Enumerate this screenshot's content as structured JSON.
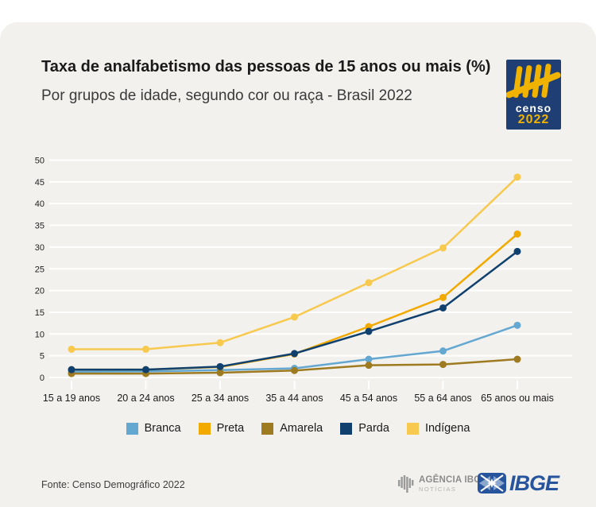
{
  "header": {
    "title": "Taxa de analfabetismo das pessoas de 15 anos ou mais (%)",
    "subtitle": "Por grupos de idade, segundo cor ou raça - Brasil 2022"
  },
  "censo_logo": {
    "word": "censo",
    "year": "2022",
    "bg_color": "#1e3e74",
    "yellow_color": "#f0b400"
  },
  "chart_data": {
    "type": "line",
    "title": "Taxa de analfabetismo das pessoas de 15 anos ou mais (%)",
    "subtitle": "Por grupos de idade, segundo cor ou raça - Brasil 2022",
    "xlabel": "",
    "ylabel": "",
    "ylim": [
      0,
      50
    ],
    "ytick_step": 5,
    "grid": true,
    "legend_position": "bottom",
    "categories": [
      "15 a 19 anos",
      "20 a 24 anos",
      "25 a 34 anos",
      "35 a 44 anos",
      "45 a 54 anos",
      "55 a 64 anos",
      "65 anos ou mais"
    ],
    "series": [
      {
        "name": "Branca",
        "color": "#64a8d2",
        "values": [
          1.3,
          1.4,
          1.7,
          2.1,
          4.2,
          6.1,
          12.0
        ]
      },
      {
        "name": "Preta",
        "color": "#f2a900",
        "values": [
          1.8,
          1.8,
          2.4,
          5.4,
          11.7,
          18.4,
          33.0
        ]
      },
      {
        "name": "Amarela",
        "color": "#9e7b20",
        "values": [
          0.9,
          0.9,
          1.1,
          1.6,
          2.8,
          3.0,
          4.2
        ]
      },
      {
        "name": "Parda",
        "color": "#10406e",
        "values": [
          1.8,
          1.8,
          2.5,
          5.5,
          10.6,
          16.0,
          29.0
        ]
      },
      {
        "name": "Indígena",
        "color": "#f7c94e",
        "values": [
          6.5,
          6.5,
          8.0,
          13.9,
          21.8,
          29.8,
          46.1
        ]
      }
    ]
  },
  "footer": {
    "source": "Fonte: Censo Demográfico 2022",
    "agencia_line1": "AGÊNCIA IBGE",
    "agencia_line2": "NOTÍCIAS",
    "ibge_label": "IBGE"
  },
  "theme": {
    "page_bg": "#ffffff",
    "card_bg": "#f2f1ee",
    "grid_color": "#ffffff",
    "censo_bg": "#1e3e74",
    "censo_yellow": "#f0b400",
    "agencia_gray": "#8c8c8c",
    "ibge_blue": "#27549c"
  }
}
